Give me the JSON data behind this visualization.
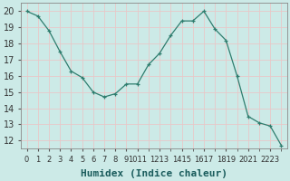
{
  "x": [
    0,
    1,
    2,
    3,
    4,
    5,
    6,
    7,
    8,
    9,
    10,
    11,
    12,
    13,
    14,
    15,
    16,
    17,
    18,
    19,
    20,
    21,
    22,
    23
  ],
  "y": [
    20.0,
    19.7,
    18.8,
    17.5,
    16.3,
    15.9,
    15.0,
    14.7,
    14.9,
    15.5,
    15.5,
    16.7,
    17.4,
    18.5,
    19.4,
    19.4,
    20.0,
    18.9,
    18.2,
    16.0,
    13.5,
    13.1,
    12.9,
    11.7
  ],
  "line_color": "#2e7d6e",
  "marker": "+",
  "background_color": "#cceae7",
  "grid_color_major": "#e8c8c8",
  "grid_color_minor": "#e8c8c8",
  "xlabel": "Humidex (Indice chaleur)",
  "ylim": [
    11.5,
    20.5
  ],
  "yticks": [
    12,
    13,
    14,
    15,
    16,
    17,
    18,
    19,
    20
  ],
  "shown_xtick_positions": [
    0,
    1,
    2,
    3,
    4,
    5,
    6,
    7,
    8,
    9,
    10,
    12,
    14,
    16,
    18,
    20,
    22
  ],
  "shown_xtick_labels": [
    "0",
    "1",
    "2",
    "3",
    "4",
    "5",
    "6",
    "7",
    "8",
    "9",
    "1011",
    "1213",
    "1415",
    "1617",
    "1819",
    "2021",
    "2223"
  ],
  "xlabel_fontsize": 8,
  "tick_labelsize": 6,
  "ytick_labelsize": 7
}
